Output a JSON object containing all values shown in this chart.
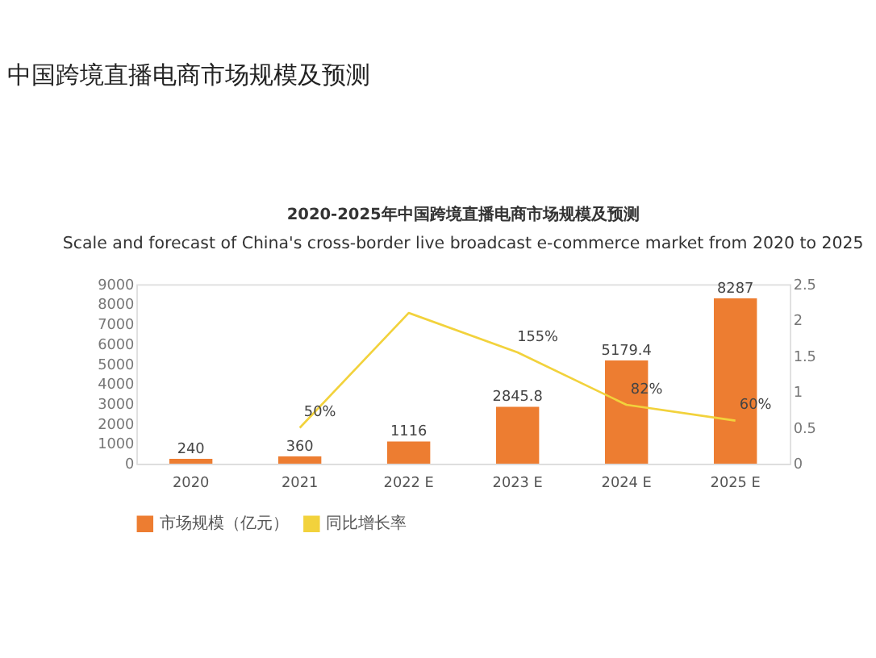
{
  "chart_data": {
    "type": "bar",
    "title": "中国跨境直播电商市场规模及预测",
    "subtitle": "2020-2025年中国跨境直播电商市场规模及预测\nScale and forecast of China's cross-border live broadcast e-commerce market from 2020 to 2025",
    "categories": [
      "2020",
      "2021",
      "2022 E",
      "2023 E",
      "2024 E",
      "2025 E"
    ],
    "series": [
      {
        "name": "市场规模（亿元）",
        "color": "#ed7d31",
        "values": [
          240,
          360,
          1116,
          2845.8,
          5179.4,
          8287
        ],
        "data_labels": true
      },
      {
        "name": "同比增长率",
        "type": "line",
        "axis": "y2",
        "color": "#f2d23c",
        "values": [
          null,
          0.5,
          2.1,
          1.55,
          0.82,
          0.6
        ],
        "value_labels": [
          null,
          "50%",
          null,
          "155%",
          "82%",
          "60%"
        ]
      }
    ],
    "ylim": [
      0,
      9000
    ],
    "yticks": [
      0,
      1000,
      2000,
      3000,
      4000,
      5000,
      6000,
      7000,
      8000,
      9000
    ],
    "y2lim": [
      0,
      2.5
    ],
    "y2ticks": [
      0,
      0.5,
      1,
      1.5,
      2,
      2.5
    ],
    "grid": false,
    "legend": "bottom",
    "marker": "none",
    "line_style": "solid"
  }
}
